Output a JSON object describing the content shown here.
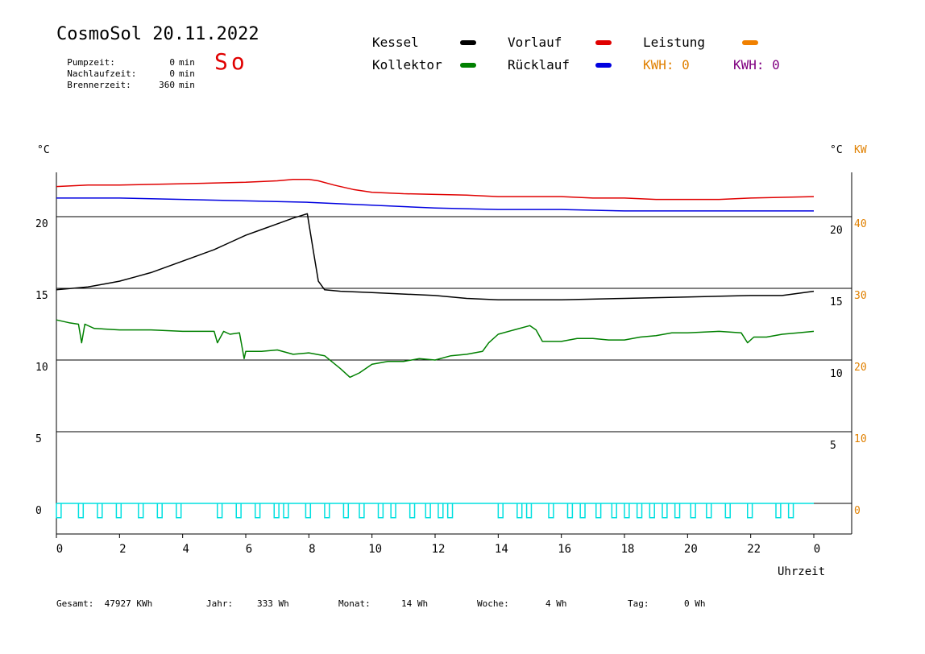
{
  "header": {
    "title": "CosmoSol 20.11.2022",
    "day": "So",
    "info": [
      {
        "label": "Pumpzeit:",
        "value": "0",
        "unit": "min"
      },
      {
        "label": "Nachlaufzeit:",
        "value": "0",
        "unit": "min"
      },
      {
        "label": "Brennerzeit:",
        "value": "360",
        "unit": "min"
      }
    ]
  },
  "legend": {
    "kessel": {
      "label": "Kessel",
      "color": "#000000"
    },
    "kollektor": {
      "label": "Kollektor",
      "color": "#008000"
    },
    "vorlauf": {
      "label": "Vorlauf",
      "color": "#e00000"
    },
    "ruecklauf": {
      "label": "Rücklauf",
      "color": "#0000e0"
    },
    "leistung": {
      "label": "Leistung",
      "color": "#f08000"
    },
    "kwh1": {
      "label": "KWH:",
      "value": "0",
      "color": "#e08000"
    },
    "kwh2": {
      "label": "KWH:",
      "value": "0",
      "color": "#800080"
    }
  },
  "footer": {
    "gesamt": {
      "label": "Gesamt:",
      "value": "47927 KWh"
    },
    "jahr": {
      "label": "Jahr:",
      "value": "333 Wh"
    },
    "monat": {
      "label": "Monat:",
      "value": "14 Wh"
    },
    "woche": {
      "label": "Woche:",
      "value": "4 Wh"
    },
    "tag": {
      "label": "Tag:",
      "value": "0 Wh"
    }
  },
  "chart_data": {
    "type": "line",
    "xlabel": "Uhrzeit",
    "x_ticks": [
      "0",
      "2",
      "4",
      "6",
      "8",
      "10",
      "12",
      "14",
      "16",
      "18",
      "20",
      "22",
      "0"
    ],
    "xlim": [
      0,
      24
    ],
    "y_left": {
      "unit": "°C",
      "ticks": [
        "0",
        "5",
        "10",
        "15",
        "20"
      ],
      "range": [
        -2,
        25
      ]
    },
    "y_right_temp": {
      "unit": "°C",
      "ticks": [
        "5",
        "10",
        "15",
        "20"
      ]
    },
    "y_right_power": {
      "unit": "KW",
      "ticks": [
        "0",
        "10",
        "20",
        "30",
        "40"
      ],
      "color": "#e08000"
    },
    "grid": {
      "horizontal_at": [
        0,
        5,
        10,
        15,
        20
      ]
    },
    "series": [
      {
        "name": "Vorlauf",
        "color": "#e00000",
        "x": [
          0,
          1,
          2,
          4,
          6,
          7,
          7.5,
          8,
          8.3,
          8.8,
          9.4,
          10,
          11,
          13,
          14,
          16,
          17,
          18,
          19,
          20,
          21,
          22,
          24
        ],
        "y": [
          22.1,
          22.2,
          22.2,
          22.3,
          22.4,
          22.5,
          22.6,
          22.6,
          22.5,
          22.2,
          21.9,
          21.7,
          21.6,
          21.5,
          21.4,
          21.4,
          21.3,
          21.3,
          21.2,
          21.2,
          21.2,
          21.3,
          21.4
        ]
      },
      {
        "name": "Rücklauf",
        "color": "#0000e0",
        "x": [
          0,
          2,
          4,
          6,
          8,
          10,
          12,
          14,
          16,
          18,
          20,
          22,
          24
        ],
        "y": [
          21.3,
          21.3,
          21.2,
          21.1,
          21.0,
          20.8,
          20.6,
          20.5,
          20.5,
          20.4,
          20.4,
          20.4,
          20.4
        ]
      },
      {
        "name": "Kessel",
        "color": "#000000",
        "x": [
          0,
          0.5,
          1,
          1.5,
          2,
          2.5,
          3,
          3.5,
          4,
          4.5,
          5,
          5.5,
          6,
          6.5,
          7,
          7.5,
          7.8,
          7.95,
          8.15,
          8.3,
          8.5,
          9,
          10,
          11,
          12,
          13,
          14,
          16,
          18,
          20,
          22,
          23,
          24
        ],
        "y": [
          14.9,
          15.0,
          15.1,
          15.3,
          15.5,
          15.8,
          16.1,
          16.5,
          16.9,
          17.3,
          17.7,
          18.2,
          18.7,
          19.1,
          19.5,
          19.9,
          20.1,
          20.2,
          17.5,
          15.5,
          14.9,
          14.8,
          14.7,
          14.6,
          14.5,
          14.3,
          14.2,
          14.2,
          14.3,
          14.4,
          14.5,
          14.5,
          14.8
        ]
      },
      {
        "name": "Kollektor",
        "color": "#008000",
        "x": [
          0,
          0.4,
          0.7,
          0.8,
          0.9,
          1.2,
          2,
          3,
          4,
          4.5,
          5,
          5.1,
          5.3,
          5.5,
          5.8,
          5.95,
          6.0,
          6.5,
          7,
          7.5,
          8,
          8.5,
          9,
          9.3,
          9.6,
          10,
          10.5,
          11,
          11.5,
          12,
          12.5,
          13,
          13.5,
          13.7,
          14,
          14.5,
          15,
          15.2,
          15.4,
          16,
          16.5,
          17,
          17.5,
          18,
          18.5,
          19,
          19.5,
          20,
          21,
          21.7,
          21.9,
          22.1,
          22.5,
          23,
          23.5,
          24
        ],
        "y": [
          12.8,
          12.6,
          12.5,
          11.2,
          12.5,
          12.2,
          12.1,
          12.1,
          12.0,
          12.0,
          12.0,
          11.2,
          12.0,
          11.8,
          11.9,
          10.1,
          10.6,
          10.6,
          10.7,
          10.4,
          10.5,
          10.3,
          9.4,
          8.8,
          9.1,
          9.7,
          9.9,
          9.9,
          10.1,
          10.0,
          10.3,
          10.4,
          10.6,
          11.2,
          11.8,
          12.1,
          12.4,
          12.1,
          11.3,
          11.3,
          11.5,
          11.5,
          11.4,
          11.4,
          11.6,
          11.7,
          11.9,
          11.9,
          12.0,
          11.9,
          11.2,
          11.6,
          11.6,
          11.8,
          11.9,
          12.0
        ]
      },
      {
        "name": "Leistung",
        "color": "#00e0e0",
        "pulses_start_h": [
          0,
          0.7,
          1.3,
          1.9,
          2.6,
          3.2,
          3.8,
          5.1,
          5.7,
          6.3,
          6.9,
          7.2,
          7.9,
          8.5,
          9.1,
          9.6,
          10.2,
          10.6,
          11.2,
          11.7,
          12.1,
          12.4,
          14.0,
          14.6,
          14.9,
          15.6,
          16.2,
          16.6,
          17.1,
          17.6,
          18.0,
          18.4,
          18.8,
          19.2,
          19.6,
          20.1,
          20.6,
          21.2,
          21.9,
          22.8,
          23.2
        ],
        "pulse_width_h": 0.15,
        "pulse_depth": 1.0
      }
    ]
  }
}
